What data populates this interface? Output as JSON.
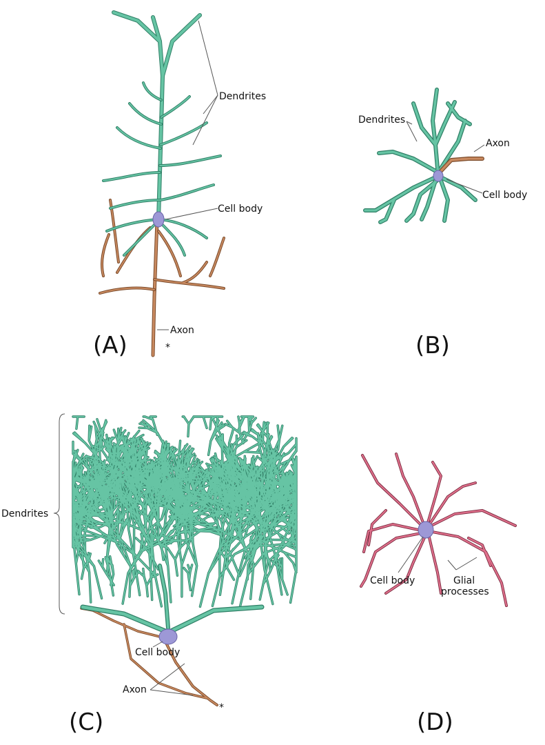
{
  "panels": {
    "a": {
      "letter": "(A)",
      "labels": {
        "dendrites": "Dendrites",
        "cell_body": "Cell body",
        "axon": "Axon",
        "asterisk": "*"
      }
    },
    "b": {
      "letter": "(B)",
      "labels": {
        "dendrites": "Dendrites",
        "axon": "Axon",
        "cell_body": "Cell body"
      }
    },
    "c": {
      "letter": "(C)",
      "labels": {
        "dendrites": "Dendrites",
        "cell_body": "Cell body",
        "axon": "Axon",
        "asterisk": "*"
      }
    },
    "d": {
      "letter": "(D)",
      "labels": {
        "cell_body": "Cell body",
        "glial_processes_line1": "Glial",
        "glial_processes_line2": "processes"
      }
    }
  },
  "colors": {
    "dendrite": "#4fae8f",
    "axon": "#b0744a",
    "glia": "#c8506e",
    "cell_body": "#9d98d6"
  }
}
